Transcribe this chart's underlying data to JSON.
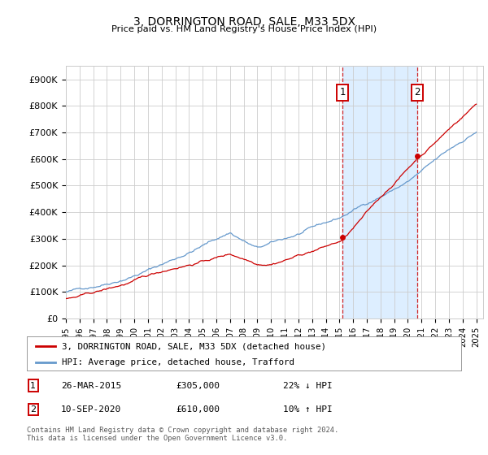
{
  "title": "3, DORRINGTON ROAD, SALE, M33 5DX",
  "subtitle": "Price paid vs. HM Land Registry's House Price Index (HPI)",
  "yticks": [
    0,
    100000,
    200000,
    300000,
    400000,
    500000,
    600000,
    700000,
    800000,
    900000
  ],
  "ytick_labels": [
    "£0",
    "£100K",
    "£200K",
    "£300K",
    "£400K",
    "£500K",
    "£600K",
    "£700K",
    "£800K",
    "£900K"
  ],
  "ylim": [
    0,
    950000
  ],
  "xlim_start": 1995.0,
  "xlim_end": 2025.5,
  "sale_color": "#cc0000",
  "hpi_color": "#6699cc",
  "highlight_bg": "#ddeeff",
  "vline_color": "#cc0000",
  "sale1_x": 2015.23,
  "sale1_y": 305000,
  "sale2_x": 2020.7,
  "sale2_y": 610000,
  "legend_sale_label": "3, DORRINGTON ROAD, SALE, M33 5DX (detached house)",
  "legend_hpi_label": "HPI: Average price, detached house, Trafford",
  "table_rows": [
    {
      "num": "1",
      "date": "26-MAR-2015",
      "price": "£305,000",
      "hpi": "22% ↓ HPI"
    },
    {
      "num": "2",
      "date": "10-SEP-2020",
      "price": "£610,000",
      "hpi": "10% ↑ HPI"
    }
  ],
  "footnote": "Contains HM Land Registry data © Crown copyright and database right 2024.\nThis data is licensed under the Open Government Licence v3.0.",
  "background_color": "#ffffff",
  "plot_bg_color": "#ffffff",
  "grid_color": "#cccccc"
}
